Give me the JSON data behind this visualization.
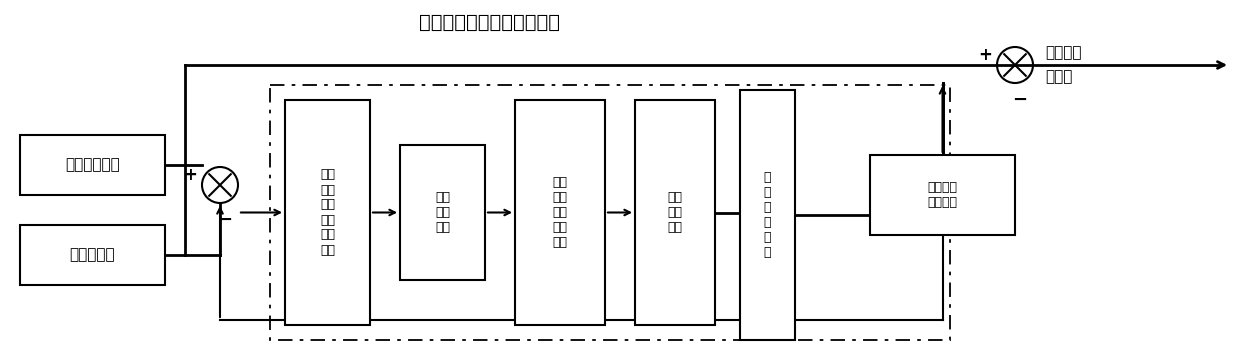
{
  "title": "惯导解算位置、速度、姿态",
  "box_ins": "捷联惯导系统",
  "box_dop": "多普勒系统",
  "box_inn": "新息\n协方\n差限\n定窗\n口平\n滑器",
  "box_gain": "修正\n增益\n矩阵",
  "box_pred": "修正\n一步\n预测\n均方\n误差",
  "box_est": "估计\n系统\n状态",
  "box_adapt": "自\n适\n应\n滤\n波\n器",
  "box_nav": "导航参数\n估计误差",
  "label_out1": "修正后导",
  "label_out2": "航信息",
  "bg_color": "#ffffff",
  "line_color": "#000000",
  "lw": 1.5,
  "lw_thick": 2.0,
  "font_size_title": 14,
  "font_size_box_large": 11,
  "font_size_box_small": 9,
  "font_size_label": 11
}
